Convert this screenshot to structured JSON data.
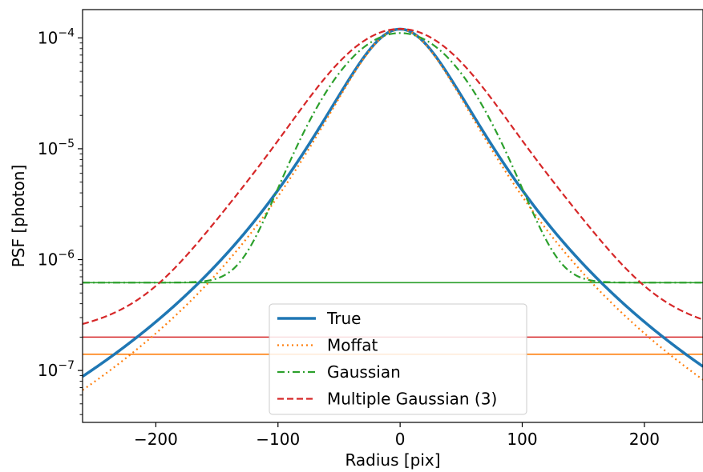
{
  "chart_data": {
    "type": "line",
    "xlabel": "Radius [pix]",
    "ylabel": "PSF [photon]",
    "xlim": [
      -260,
      248
    ],
    "ylim": [
      3.4e-08,
      0.00018
    ],
    "yscale": "log",
    "grid": false,
    "legend_placement": "lower center",
    "x_ticks": [
      -200,
      -100,
      0,
      100,
      200
    ],
    "x_tick_labels": [
      "−200",
      "−100",
      "0",
      "100",
      "200"
    ],
    "y_ticks": [
      1e-07,
      1e-06,
      1e-05,
      0.0001
    ],
    "y_tick_base": "10",
    "y_tick_exponents": [
      "−7",
      "−6",
      "−5",
      "−4"
    ],
    "series": [
      {
        "name": "True",
        "color": "#1f77b4",
        "style": "solid",
        "width": 3.5,
        "model": "moffat",
        "amplitude": 0.00012,
        "alpha": 55,
        "beta": 2.29
      },
      {
        "name": "Moffat",
        "color": "#ff7f0e",
        "style": "dotted",
        "width": 2.2,
        "model": "moffat",
        "amplitude": 0.00012,
        "alpha": 55,
        "beta": 2.38
      },
      {
        "name": "Gaussian",
        "color": "#2ca02c",
        "style": "dashdot",
        "width": 2.2,
        "model": "gaussian",
        "amplitude": 0.00011,
        "sigma": 38.5,
        "floor": 6.2e-07
      },
      {
        "name": "Multiple Gaussian (3)",
        "color": "#d62728",
        "style": "dashed",
        "width": 2.2,
        "model": "multigauss",
        "floor": 2e-07,
        "components": [
          [
            9e-05,
            38
          ],
          [
            2.9e-05,
            62
          ],
          [
            1.5e-06,
            102
          ]
        ]
      }
    ],
    "hlines": [
      {
        "y": 6.2e-07,
        "color": "#2ca02c"
      },
      {
        "y": 2e-07,
        "color": "#d62728"
      },
      {
        "y": 1.4e-07,
        "color": "#ff7f0e"
      }
    ]
  }
}
